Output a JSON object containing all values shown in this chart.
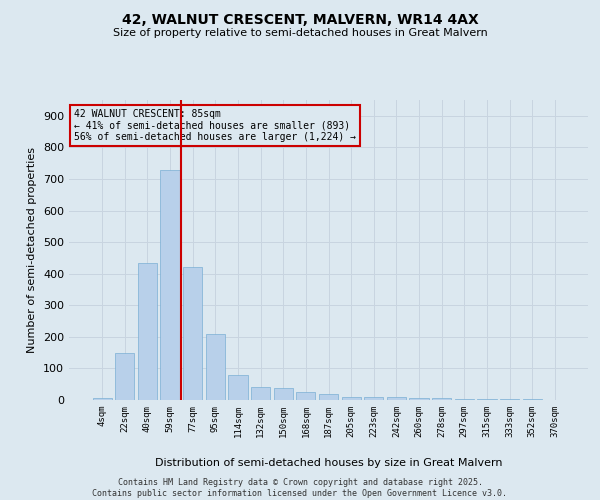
{
  "title": "42, WALNUT CRESCENT, MALVERN, WR14 4AX",
  "subtitle": "Size of property relative to semi-detached houses in Great Malvern",
  "xlabel": "Distribution of semi-detached houses by size in Great Malvern",
  "ylabel": "Number of semi-detached properties",
  "categories": [
    "4sqm",
    "22sqm",
    "40sqm",
    "59sqm",
    "77sqm",
    "95sqm",
    "114sqm",
    "132sqm",
    "150sqm",
    "168sqm",
    "187sqm",
    "205sqm",
    "223sqm",
    "242sqm",
    "260sqm",
    "278sqm",
    "297sqm",
    "315sqm",
    "333sqm",
    "352sqm",
    "370sqm"
  ],
  "values": [
    5,
    148,
    435,
    728,
    420,
    210,
    78,
    42,
    38,
    25,
    18,
    10,
    9,
    8,
    7,
    5,
    4,
    3,
    2,
    2,
    0
  ],
  "bar_color": "#b8d0ea",
  "bar_edge_color": "#7aafd4",
  "grid_color": "#c8d4e0",
  "background_color": "#dce8f0",
  "vline_color": "#cc0000",
  "vline_pos": 3.5,
  "annotation_text": "42 WALNUT CRESCENT: 85sqm\n← 41% of semi-detached houses are smaller (893)\n56% of semi-detached houses are larger (1,224) →",
  "annotation_box_edge_color": "#cc0000",
  "footer": "Contains HM Land Registry data © Crown copyright and database right 2025.\nContains public sector information licensed under the Open Government Licence v3.0.",
  "ylim": [
    0,
    950
  ],
  "yticks": [
    0,
    100,
    200,
    300,
    400,
    500,
    600,
    700,
    800,
    900
  ]
}
